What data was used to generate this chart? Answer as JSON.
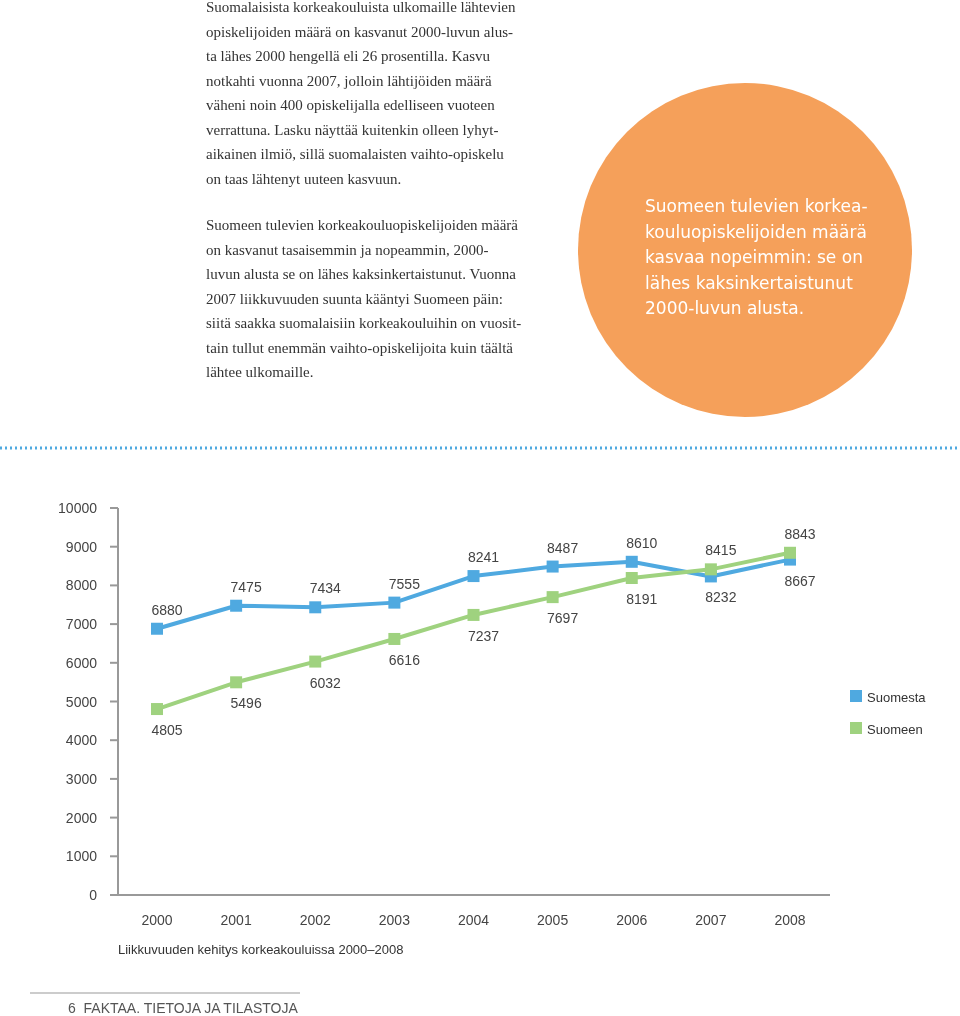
{
  "chart_data": {
    "type": "line",
    "categories": [
      "2000",
      "2001",
      "2002",
      "2003",
      "2004",
      "2005",
      "2006",
      "2007",
      "2008"
    ],
    "series": [
      {
        "name": "Suomesta",
        "color": "#4fa9e0",
        "values": [
          6880,
          7475,
          7434,
          7555,
          8241,
          8487,
          8610,
          8232,
          8667
        ]
      },
      {
        "name": "Suomeen",
        "color": "#9fd27f",
        "values": [
          4805,
          5496,
          6032,
          6616,
          7237,
          7697,
          8191,
          8415,
          8843
        ]
      }
    ],
    "ylim": [
      0,
      10000
    ],
    "yticks": [
      0,
      1000,
      2000,
      3000,
      4000,
      5000,
      6000,
      7000,
      8000,
      9000,
      10000
    ],
    "grid": false,
    "legend": "right",
    "marker": "square",
    "line_style": "solid",
    "data_labels": true,
    "annotations": [
      "Suomalaisista korkeakouluista ulkomaille lähtevien\nopiskelijoiden määrä on kasvanut 2000-luvun alus-\nta lähes 2000 hengellä eli 26 prosentilla. Kasvu\nnotkahti vuonna 2007, jolloin lähtijöiden määrä\nväheni noin 400 opiskelijalla edelliseen vuoteen\nverrattuna. Lasku näyttää kuitenkin olleen lyhyt-\naikainen ilmiö, sillä suomalaisten vaihto-opiskelu\non taas lähtenyt uuteen kasvuun.",
      "Suomeen tulevien korkeakouluopiskelijoiden määrä\non kasvanut tasaisemmin ja nopeammin, 2000-\nluvun alusta se on lähes kaksinkertaistunut. Vuonna\n2007 liikkuvuuden suunta kääntyi Suomeen päin:\nsiitä saakka suomalaisiin korkeakouluihin on vuosit-\ntain tullut enemmän vaihto-opiskelijoita kuin täältä\nlähtee ulkomaille.",
      "Suomeen tulevien korkea-\nkouluopiskelijoiden määrä\nkasvaa nopeimmin: se on\nlähes kaksinkertaistunut\n2000-luvun alusta.",
      "Liikkuvuuden kehitys korkeakouluissa 2000–2008",
      "6  FAKTAA. TIETOJA JA TILASTOJA"
    ]
  }
}
